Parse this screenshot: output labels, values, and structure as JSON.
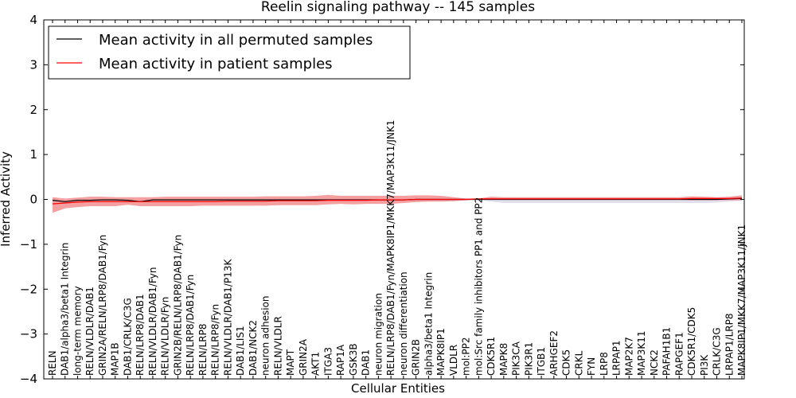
{
  "chart_data": {
    "type": "line",
    "title": "Reelin signaling pathway -- 145 samples",
    "xlabel": "Cellular Entities",
    "ylabel": "Inferred Activity",
    "ylim": [
      -4,
      4
    ],
    "yticks": [
      -4,
      -3,
      -2,
      -1,
      0,
      1,
      2,
      3,
      4
    ],
    "ytick_labels": [
      "−4",
      "−3",
      "−2",
      "−1",
      "0",
      "1",
      "2",
      "3",
      "4"
    ],
    "legend": {
      "placement": "top-left",
      "entries": [
        {
          "label": "Mean activity in all permuted samples",
          "color": "#000000"
        },
        {
          "label": "Mean activity in patient samples",
          "color": "#ff0000"
        }
      ]
    },
    "categories": [
      "RELN",
      "DAB1/alpha3/beta1 Integrin",
      "long-term memory",
      "RELN/VLDLR/DAB1",
      "GRIN2A/RELN/LRP8/DAB1/Fyn",
      "MAP1B",
      "DAB1/CRLK/C3G",
      "RELN/LRP8/DAB1",
      "RELN/VLDLR/DAB1/Fyn",
      "RELN/VLDLR/Fyn",
      "GRIN2B/RELN/LRP8/DAB1/Fyn",
      "RELN/LRP8/DAB1/Fyn",
      "RELN/LRP8",
      "RELN/LRP8/Fyn",
      "RELN/VLDLR/DAB1/P13K",
      "DAB1/LIS1",
      "DAB1/NCK2",
      "neuron adhesion",
      "RELN/VLDLR",
      "MAPT",
      "GRIN2A",
      "AKT1",
      "ITGA3",
      "RAP1A",
      "GSK3B",
      "DAB1",
      "neuron migration",
      "RELN/LRP8/DAB1/Fyn/MAPK8IP1/MKK7/MAP3K11/JNK1",
      "neuron differentiation",
      "GRIN2B",
      "alpha3/beta1 Integrin",
      "MAPK8IP1",
      "VLDLR",
      "mol:PP2",
      "mol:Src family inhibitors PP1 and PP2",
      "CDK5R1",
      "MAPK8",
      "PIK3CA",
      "PIK3R1",
      "ITGB1",
      "ARHGEF2",
      "CDK5",
      "CRKL",
      "FYN",
      "LRP8",
      "LRPAP1",
      "MAP2K7",
      "MAP3K11",
      "NCK2",
      "PAFAH1B1",
      "RAPGEF1",
      "CDK5R1/CDK5",
      "PI3K",
      "CRLK/C3G",
      "LRPAP1/LRP8",
      "MAPK8IP1/MKK7/MAP3K11/JNK1"
    ],
    "series": [
      {
        "name": "Mean activity in all permuted samples",
        "color": "#000000",
        "values": [
          -0.02,
          -0.05,
          -0.02,
          -0.02,
          -0.01,
          -0.01,
          -0.02,
          -0.05,
          -0.01,
          -0.01,
          -0.01,
          -0.01,
          -0.01,
          -0.01,
          -0.01,
          -0.01,
          -0.01,
          -0.01,
          -0.01,
          -0.01,
          -0.01,
          -0.01,
          -0.01,
          -0.01,
          -0.01,
          -0.01,
          -0.01,
          -0.01,
          -0.01,
          0.0,
          0.0,
          0.0,
          0.0,
          0.0,
          0.0,
          0.0,
          0.0,
          0.0,
          0.0,
          0.0,
          0.0,
          0.0,
          0.0,
          0.0,
          0.0,
          0.0,
          0.0,
          0.0,
          0.0,
          0.0,
          0.0,
          0.0,
          0.0,
          0.0,
          0.01,
          0.02
        ]
      },
      {
        "name": "Mean activity in patient samples",
        "color": "#ff0000",
        "values": [
          -0.1,
          -0.08,
          -0.06,
          -0.05,
          -0.05,
          -0.05,
          -0.05,
          -0.05,
          -0.05,
          -0.05,
          -0.05,
          -0.05,
          -0.05,
          -0.05,
          -0.04,
          -0.04,
          -0.04,
          -0.04,
          -0.03,
          -0.03,
          -0.03,
          -0.03,
          -0.02,
          -0.02,
          -0.02,
          -0.02,
          -0.01,
          -0.01,
          -0.01,
          0.0,
          0.0,
          0.0,
          0.0,
          0.0,
          0.01,
          0.01,
          0.01,
          0.01,
          0.01,
          0.01,
          0.01,
          0.01,
          0.01,
          0.01,
          0.01,
          0.01,
          0.01,
          0.01,
          0.01,
          0.01,
          0.01,
          0.02,
          0.02,
          0.02,
          0.02,
          0.03
        ]
      }
    ],
    "patient_band": {
      "lower": [
        -0.3,
        -0.2,
        -0.17,
        -0.15,
        -0.15,
        -0.15,
        -0.12,
        -0.15,
        -0.15,
        -0.15,
        -0.15,
        -0.15,
        -0.14,
        -0.14,
        -0.14,
        -0.14,
        -0.14,
        -0.14,
        -0.13,
        -0.13,
        -0.13,
        -0.13,
        -0.11,
        -0.1,
        -0.11,
        -0.1,
        -0.1,
        -0.1,
        -0.08,
        -0.06,
        -0.05,
        -0.05,
        -0.04,
        -0.02,
        0.0,
        0.0,
        -0.01,
        -0.01,
        -0.01,
        -0.01,
        -0.01,
        -0.01,
        -0.01,
        -0.01,
        -0.01,
        -0.01,
        -0.01,
        -0.01,
        -0.01,
        -0.01,
        -0.01,
        -0.02,
        -0.02,
        -0.02,
        -0.02,
        -0.02
      ],
      "upper": [
        0.05,
        0.02,
        0.04,
        0.06,
        0.06,
        0.05,
        0.05,
        0.05,
        0.05,
        0.06,
        0.06,
        0.06,
        0.06,
        0.06,
        0.06,
        0.06,
        0.06,
        0.07,
        0.07,
        0.07,
        0.07,
        0.08,
        0.1,
        0.08,
        0.08,
        0.08,
        0.08,
        0.08,
        0.08,
        0.09,
        0.09,
        0.08,
        0.05,
        0.02,
        0.02,
        0.06,
        0.05,
        0.05,
        0.05,
        0.05,
        0.05,
        0.05,
        0.05,
        0.05,
        0.05,
        0.05,
        0.05,
        0.05,
        0.05,
        0.05,
        0.05,
        0.07,
        0.06,
        0.05,
        0.06,
        0.09
      ]
    },
    "permuted_band": {
      "lower": [
        -0.05,
        -0.08,
        -0.05,
        -0.04,
        -0.03,
        -0.03,
        -0.04,
        -0.07,
        -0.03,
        -0.03,
        -0.03,
        -0.03,
        -0.03,
        -0.03,
        -0.03,
        -0.03,
        -0.03,
        -0.03,
        -0.03,
        -0.03,
        -0.03,
        -0.03,
        -0.03,
        -0.03,
        -0.03,
        -0.03,
        -0.03,
        -0.03,
        -0.03,
        -0.02,
        -0.02,
        -0.02,
        -0.02,
        -0.01,
        -0.01,
        -0.05,
        -0.08,
        -0.08,
        -0.08,
        -0.08,
        -0.08,
        -0.08,
        -0.08,
        -0.08,
        -0.08,
        -0.08,
        -0.08,
        -0.08,
        -0.08,
        -0.08,
        -0.08,
        -0.08,
        -0.08,
        -0.07,
        -0.05,
        -0.03
      ],
      "upper": [
        0.01,
        -0.02,
        0.01,
        0.0,
        0.01,
        0.01,
        0.0,
        -0.03,
        0.01,
        0.01,
        0.01,
        0.01,
        0.01,
        0.01,
        0.01,
        0.01,
        0.01,
        0.01,
        0.01,
        0.01,
        0.01,
        0.01,
        0.01,
        0.01,
        0.01,
        0.01,
        0.01,
        0.01,
        0.01,
        0.02,
        0.02,
        0.02,
        0.02,
        0.01,
        0.01,
        0.02,
        0.02,
        0.02,
        0.02,
        0.02,
        0.02,
        0.02,
        0.02,
        0.02,
        0.02,
        0.02,
        0.02,
        0.02,
        0.02,
        0.02,
        0.02,
        0.02,
        0.02,
        0.03,
        0.04,
        0.06
      ]
    },
    "colors": {
      "patient_band": "#f08080",
      "permuted_band": "#d8d8e8",
      "axes": "#000000"
    }
  }
}
